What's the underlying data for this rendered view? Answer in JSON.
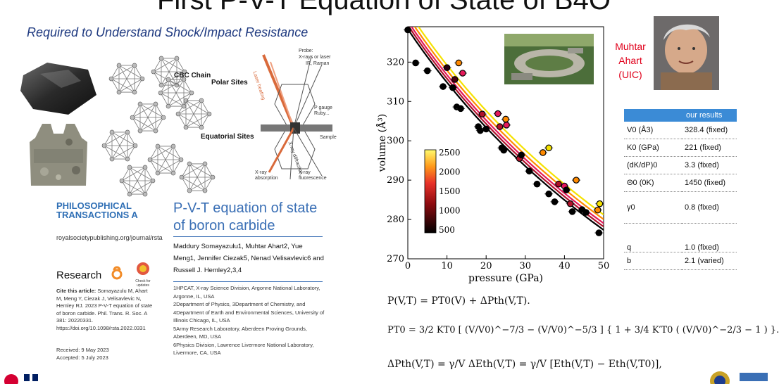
{
  "slide": {
    "title": "First P-V-T Equation of State of B4O",
    "subtitle": "Required to Understand Shock/Impact Resistance"
  },
  "structure": {
    "labels": [
      "CBC Chain",
      "Polar Sites",
      "Equatorial Sites"
    ]
  },
  "cell_diagram": {
    "labels": [
      "Probe:",
      "X-rays or laser",
      "IR, Raman",
      "Laser heating",
      "P gauge",
      "Ruby...",
      "Sample",
      "X-ray diffraction",
      "X-ray absorption",
      "X-ray fluorescence"
    ]
  },
  "paper": {
    "journal": "PHILOSOPHICAL TRANSACTIONS A",
    "url": "royalsocietypublishing.org/journal/rsta",
    "section": "Research",
    "title": "P-V-T equation of state of boron carbide",
    "authors": "Maddury Somayazulu1, Muhtar Ahart2, Yue Meng1, Jennifer Ciezak5, Nenad Velisavlevic6 and Russell J. Hemley2,3,4",
    "affiliations": [
      "1HPCAT, X-ray Science Division, Argonne National Laboratory, Argonne, IL, USA",
      "2Department of Physics, 3Department of Chemistry, and 4Department of Earth and Environmental Sciences, University of Illinois Chicago, IL, USA",
      "5Army Research Laboratory, Aberdeen Proving Grounds, Aberdeen, MD, USA",
      "6Physics Division, Lawrence Livermore National Laboratory, Livermore, CA, USA"
    ],
    "cite_label": "Cite this article:",
    "cite_text": "Somayazulu M, Ahart M, Meng Y, Ciezak J, Velisavlevic N, Hemley RJ. 2023 P-V-T equation of state of boron carbide. Phil. Trans. R. Soc. A 381: 20220331. https://doi.org/10.1098/rsta.2022.0331",
    "received": "Received: 9 May 2023",
    "accepted": "Accepted: 5 July 2023",
    "check": "Check for updates"
  },
  "person": {
    "first": "Muhtar",
    "last": "Ahart",
    "affil": "(UIC)"
  },
  "chart_data": {
    "type": "scatter",
    "xlabel": "pressure (GPa)",
    "ylabel": "volume (Å³)",
    "xlim": [
      0,
      50
    ],
    "ylim": [
      270,
      329
    ],
    "xticks": [
      "0",
      "10",
      "20",
      "30",
      "40",
      "50"
    ],
    "yticks": [
      "270",
      "280",
      "290",
      "300",
      "310",
      "320"
    ],
    "colorbar": {
      "ticks": [
        "2500",
        "2000",
        "1500",
        "1000",
        "500"
      ]
    },
    "curves": [
      {
        "T": 300,
        "color": "#000000",
        "V0": 328.4
      },
      {
        "T": 1000,
        "color": "#b0122a",
        "V0": 329.4
      },
      {
        "T": 1500,
        "color": "#e4195a",
        "V0": 330.4
      },
      {
        "T": 2000,
        "color": "#ff8a00",
        "V0": 331.6
      },
      {
        "T": 2500,
        "color": "#f5e200",
        "V0": 333.0
      }
    ],
    "points": [
      {
        "p": 0,
        "v": 328.2,
        "c": "#000000"
      },
      {
        "p": 2,
        "v": 319.8,
        "c": "#000000"
      },
      {
        "p": 5,
        "v": 317.8,
        "c": "#000000"
      },
      {
        "p": 9,
        "v": 313.8,
        "c": "#000000"
      },
      {
        "p": 10,
        "v": 318.6,
        "c": "#2a0010"
      },
      {
        "p": 11.5,
        "v": 313.5,
        "c": "#000000"
      },
      {
        "p": 12,
        "v": 315.6,
        "c": "#4a0010"
      },
      {
        "p": 12.5,
        "v": 308.6,
        "c": "#000000"
      },
      {
        "p": 13,
        "v": 319.8,
        "c": "#ff8a00"
      },
      {
        "p": 13.5,
        "v": 308.2,
        "c": "#000000"
      },
      {
        "p": 14,
        "v": 317.2,
        "c": "#e4195a"
      },
      {
        "p": 18,
        "v": 303.6,
        "c": "#000000"
      },
      {
        "p": 18.5,
        "v": 302.6,
        "c": "#000000"
      },
      {
        "p": 19,
        "v": 306.8,
        "c": "#b0122a"
      },
      {
        "p": 20,
        "v": 303,
        "c": "#000000"
      },
      {
        "p": 23,
        "v": 306.9,
        "c": "#e4195a"
      },
      {
        "p": 23.5,
        "v": 303.6,
        "c": "#b0122a"
      },
      {
        "p": 24,
        "v": 298.2,
        "c": "#000000"
      },
      {
        "p": 24.5,
        "v": 297.6,
        "c": "#000000"
      },
      {
        "p": 25,
        "v": 305.5,
        "c": "#ff8a00"
      },
      {
        "p": 25.2,
        "v": 304,
        "c": "#e4195a"
      },
      {
        "p": 28.5,
        "v": 295.5,
        "c": "#b0122a"
      },
      {
        "p": 29,
        "v": 296.4,
        "c": "#000000"
      },
      {
        "p": 31,
        "v": 292.3,
        "c": "#000000"
      },
      {
        "p": 33,
        "v": 289,
        "c": "#000000"
      },
      {
        "p": 34.5,
        "v": 297,
        "c": "#ff8a00"
      },
      {
        "p": 36,
        "v": 298.2,
        "c": "#f5e200"
      },
      {
        "p": 36,
        "v": 286.5,
        "c": "#000000"
      },
      {
        "p": 37.5,
        "v": 284.5,
        "c": "#000000"
      },
      {
        "p": 38.5,
        "v": 289,
        "c": "#b0122a"
      },
      {
        "p": 40,
        "v": 288.5,
        "c": "#e4195a"
      },
      {
        "p": 40.5,
        "v": 287.5,
        "c": "#000000"
      },
      {
        "p": 41.5,
        "v": 284,
        "c": "#b0122a"
      },
      {
        "p": 42,
        "v": 282,
        "c": "#000000"
      },
      {
        "p": 43,
        "v": 290,
        "c": "#ff8a00"
      },
      {
        "p": 44.5,
        "v": 282.5,
        "c": "#000000"
      },
      {
        "p": 45.5,
        "v": 281.8,
        "c": "#000000"
      },
      {
        "p": 48.5,
        "v": 282.4,
        "c": "#ff8a00"
      },
      {
        "p": 49,
        "v": 284,
        "c": "#f5e200"
      },
      {
        "p": 48.8,
        "v": 276.6,
        "c": "#000000"
      }
    ]
  },
  "results": {
    "header": "our results",
    "rows": [
      {
        "param": "V0 (Å3)",
        "value": "328.4 (fixed)"
      },
      {
        "param": "K0 (GPa)",
        "value": "221 (fixed)"
      },
      {
        "param": "(dK/dP)0",
        "value": "3.3 (fixed)"
      },
      {
        "param": "Θ0 (0K)",
        "value": "1450 (fixed)"
      },
      {
        "param": "γ0",
        "value": "0.8 (fixed)"
      },
      {
        "param": "q",
        "value": "1.0 (fixed)"
      },
      {
        "param": "b",
        "value": "2.1 (varied)"
      }
    ]
  },
  "equations": {
    "eq1": "P(V,T) = PT0(V) + ΔPth(V,T).",
    "eq2": "PT0 = 3/2 KT0 [ (V/V0)^−7/3 − (V/V0)^−5/3 ] { 1 + 3/4 K′T0 ( (V/V0)^−2/3 − 1 ) }.",
    "eq3": "ΔPth(V,T) = γ/V ΔEth(V,T) = γ/V [Eth(V,T) − Eth(V,T0)],"
  }
}
